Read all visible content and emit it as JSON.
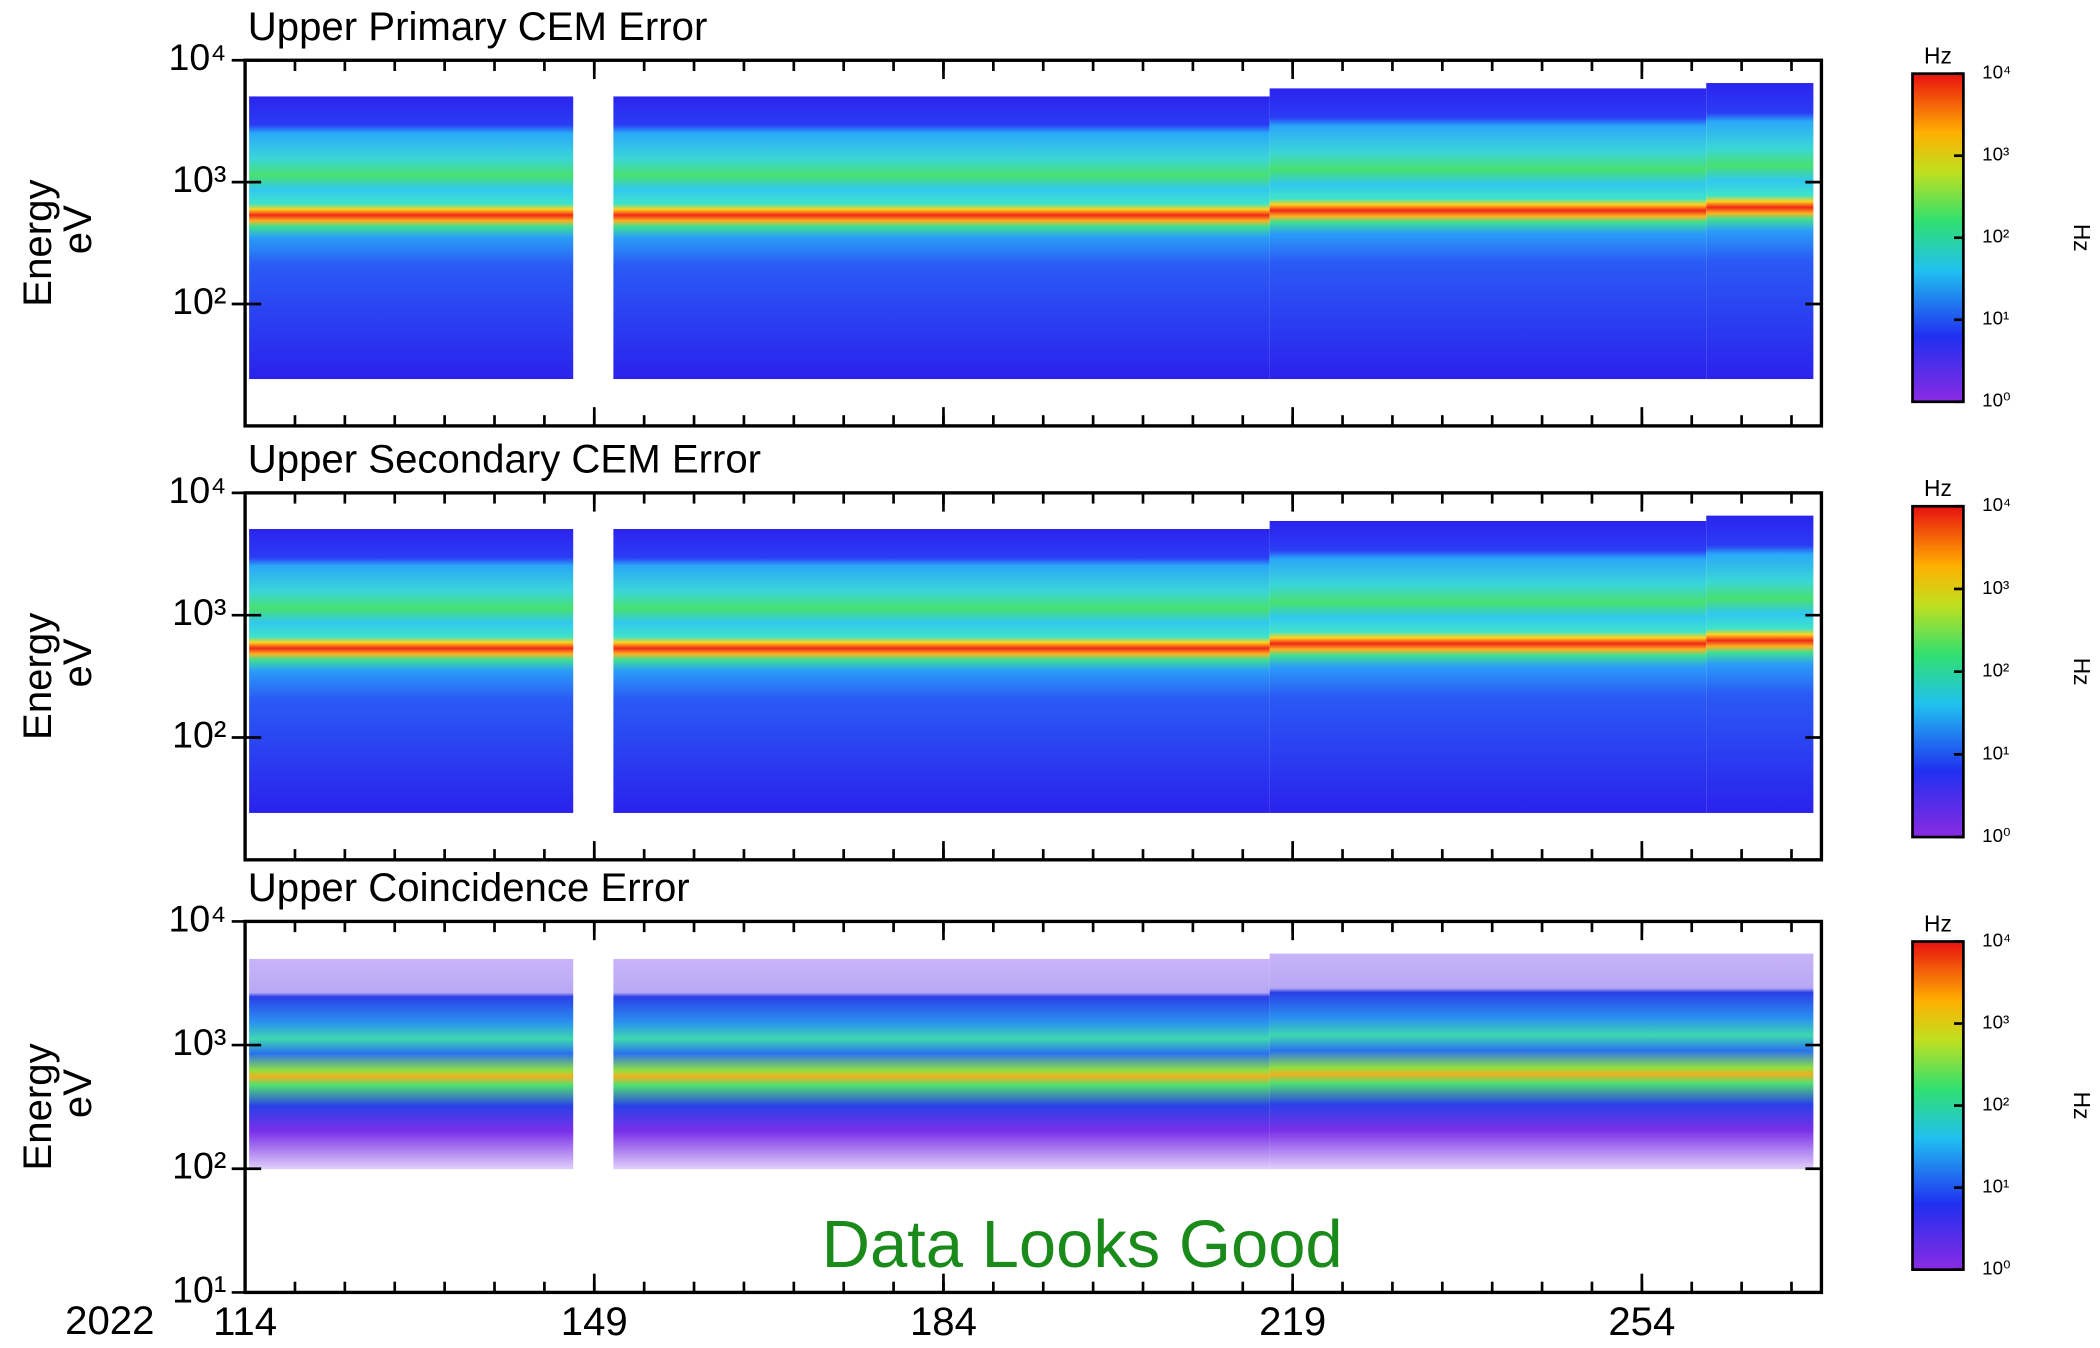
{
  "x_axis": {
    "year": "2022",
    "xlim": [
      114,
      272
    ],
    "xticks": [
      114,
      149,
      184,
      219,
      254
    ]
  },
  "annotation": "Data Looks Good",
  "chart_data": [
    {
      "type": "heatmap",
      "title": "Upper Primary CEM Error",
      "ylabel": "Energy",
      "yunit": "eV",
      "log_y": true,
      "ylim": [
        10,
        10000
      ],
      "yticks": [
        {
          "value": 100,
          "label": "10²"
        },
        {
          "value": 1000,
          "label": "10³"
        },
        {
          "value": 10000,
          "label": "10⁴"
        }
      ],
      "colorbar": {
        "title": "Hz",
        "label": "Hz",
        "lim": [
          1,
          10000
        ],
        "ticks": [
          {
            "value": 1,
            "label": "10⁰"
          },
          {
            "value": 10,
            "label": "10¹"
          },
          {
            "value": 100,
            "label": "10²"
          },
          {
            "value": 1000,
            "label": "10³"
          },
          {
            "value": 10000,
            "label": "10⁴"
          }
        ]
      }
    },
    {
      "type": "heatmap",
      "title": "Upper Secondary CEM Error",
      "ylabel": "Energy",
      "yunit": "eV",
      "log_y": true,
      "ylim": [
        10,
        10000
      ],
      "yticks": [
        {
          "value": 100,
          "label": "10²"
        },
        {
          "value": 1000,
          "label": "10³"
        },
        {
          "value": 10000,
          "label": "10⁴"
        }
      ],
      "colorbar": {
        "title": "Hz",
        "label": "Hz",
        "lim": [
          1,
          10000
        ],
        "ticks": [
          {
            "value": 1,
            "label": "10⁰"
          },
          {
            "value": 10,
            "label": "10¹"
          },
          {
            "value": 100,
            "label": "10²"
          },
          {
            "value": 1000,
            "label": "10³"
          },
          {
            "value": 10000,
            "label": "10⁴"
          }
        ]
      }
    },
    {
      "type": "heatmap",
      "title": "Upper Coincidence Error",
      "ylabel": "Energy",
      "yunit": "eV",
      "log_y": true,
      "ylim": [
        10,
        10000
      ],
      "yticks": [
        {
          "value": 10,
          "label": "10¹"
        },
        {
          "value": 100,
          "label": "10²"
        },
        {
          "value": 1000,
          "label": "10³"
        },
        {
          "value": 10000,
          "label": "10⁴"
        }
      ],
      "colorbar": {
        "title": "Hz",
        "label": "Hz",
        "lim": [
          1,
          10000
        ],
        "ticks": [
          {
            "value": 1,
            "label": "10⁰"
          },
          {
            "value": 10,
            "label": "10¹"
          },
          {
            "value": 100,
            "label": "10²"
          },
          {
            "value": 1000,
            "label": "10³"
          },
          {
            "value": 10000,
            "label": "10⁴"
          }
        ]
      }
    }
  ]
}
